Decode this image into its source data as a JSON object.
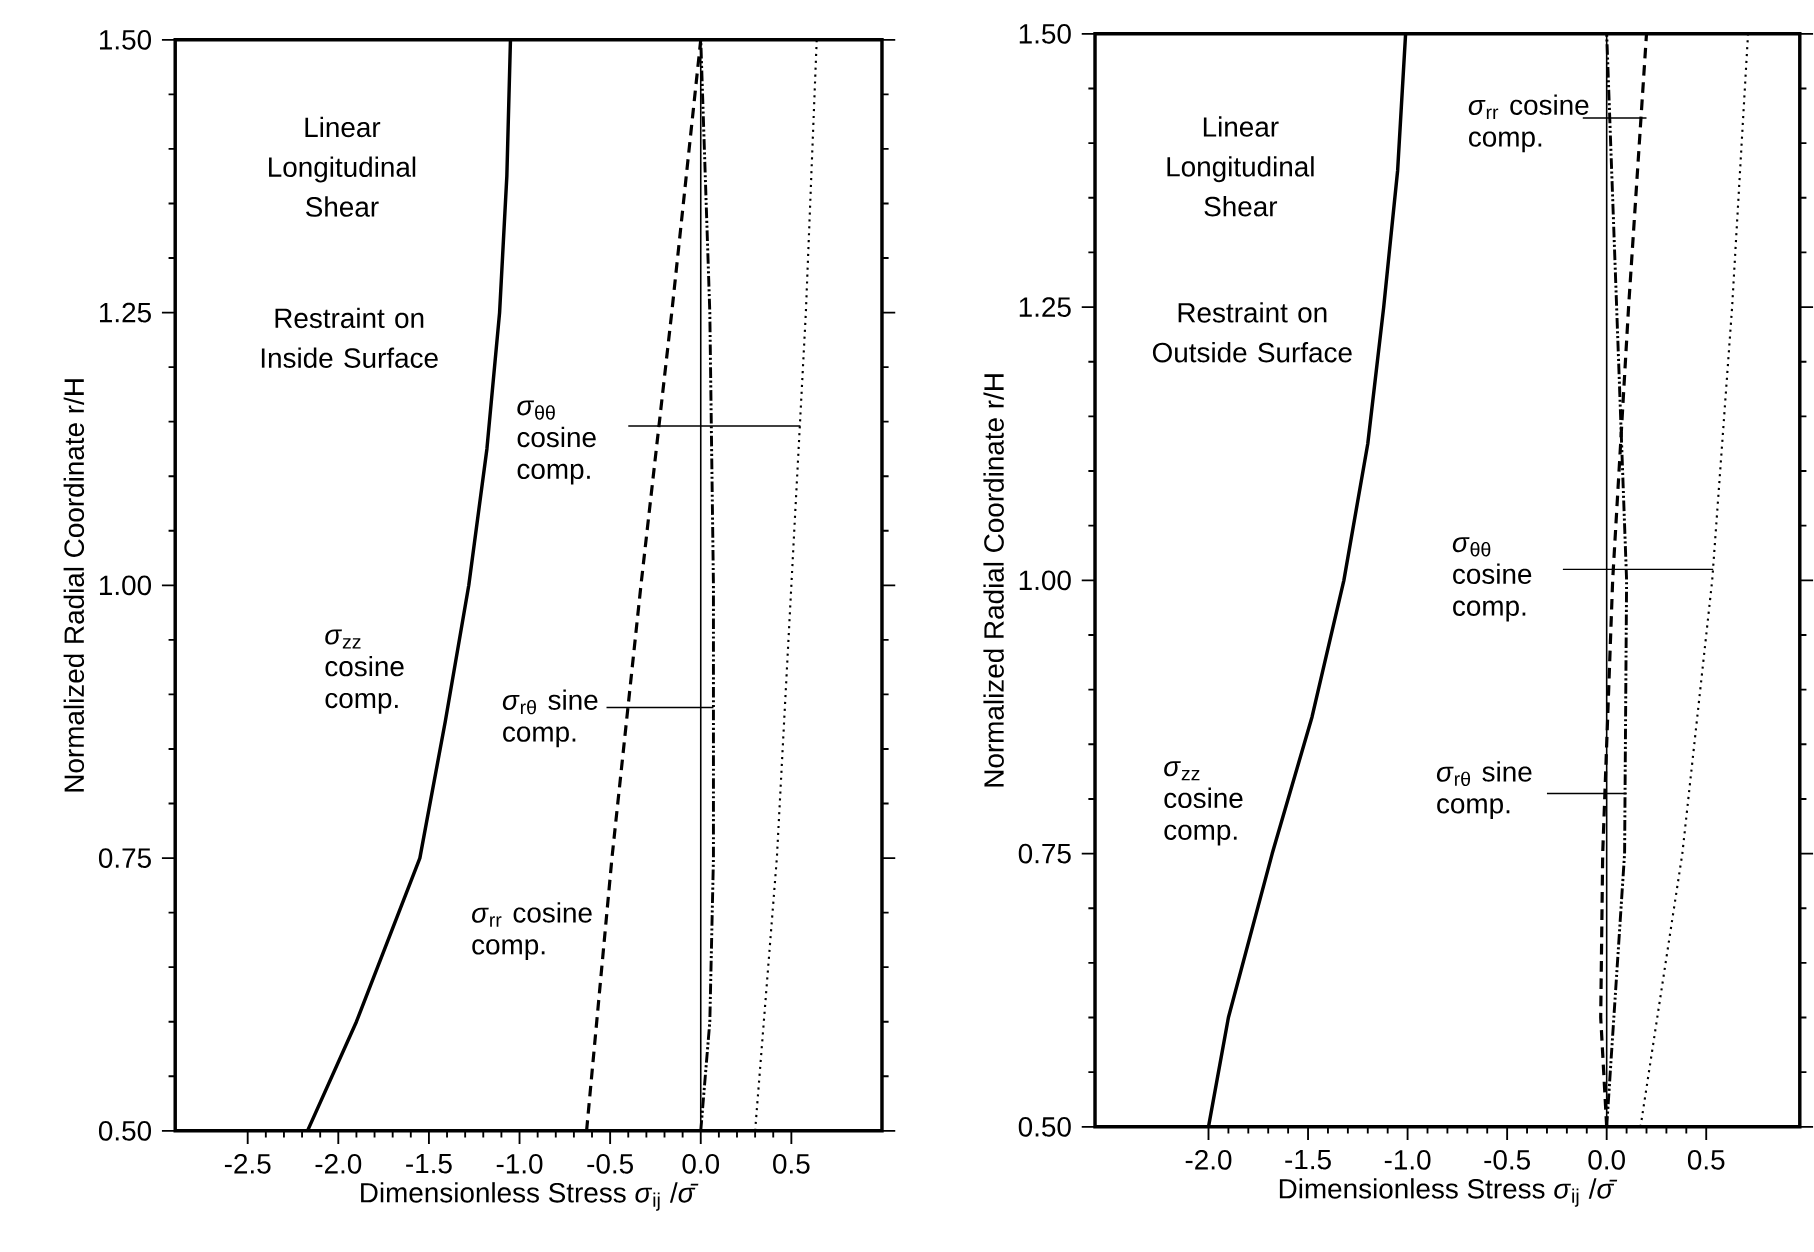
{
  "chart_data": [
    {
      "type": "line",
      "xlabel": "Dimensionless Stress  *σ*$_{ij}$ /*σ̄*",
      "ylabel": "Normalized Radial Coordinate  r/H",
      "xlim": [
        -2.9,
        1.0
      ],
      "ylim": [
        0.5,
        1.5
      ],
      "xticks": [
        {
          "value": -2.5,
          "label": "-2.5"
        },
        {
          "value": -2,
          "label": "-2.0"
        },
        {
          "value": -1.5,
          "label": "-1.5"
        },
        {
          "value": -1,
          "label": "-1.0"
        },
        {
          "value": -0.5,
          "label": "-0.5"
        },
        {
          "value": 0,
          "label": "0.0"
        },
        {
          "value": 0.5,
          "label": "0.5"
        }
      ],
      "yticks": [
        {
          "value": 0.5,
          "label": "0.50"
        },
        {
          "value": 0.75,
          "label": "0.75"
        },
        {
          "value": 1,
          "label": "1.00"
        },
        {
          "value": 1.25,
          "label": "1.25"
        },
        {
          "value": 1.5,
          "label": "1.50"
        }
      ],
      "annotations": [
        "Linear Longitudinal Shear",
        "Restraint on Inside Surface",
        "*σ*$_{zz}$ cosine comp.",
        "*σ*$_{rr}$ cosine comp.",
        {
          "text": "*σ*$_{θθ}$ cosine comp.",
          "x": 0.55,
          "y": 1.146
        },
        "*σ*$_{rθ}$ sine comp."
      ],
      "ref_lines": [
        {
          "axis": "x",
          "value": 0
        }
      ],
      "series": [
        {
          "color": "#000000",
          "line_style": "solid",
          "x": [
            -2.17,
            -1.9,
            -1.55,
            -1.41,
            -1.28,
            -1.18,
            -1.11,
            -1.07,
            -1.05
          ],
          "values": [
            0.5,
            0.6,
            0.75,
            0.875,
            1.0,
            1.125,
            1.25,
            1.375,
            1.5
          ]
        },
        {
          "color": "#000000",
          "line_style": "dashed",
          "x": [
            -0.63,
            -0.49,
            -0.33,
            -0.16,
            0.0
          ],
          "values": [
            0.5,
            0.75,
            1.0,
            1.25,
            1.5
          ]
        },
        {
          "color": "#000000",
          "line_style": "dotted",
          "x": [
            0.3,
            0.42,
            0.5,
            0.58,
            0.64
          ],
          "values": [
            0.5,
            0.75,
            1.0,
            1.25,
            1.5
          ]
        },
        {
          "color": "#000000",
          "line_style": "dashdot",
          "x": [
            0.0,
            0.05,
            0.07,
            0.07,
            0.05,
            0.0
          ],
          "values": [
            0.5,
            0.6,
            0.75,
            1.0,
            1.25,
            1.5
          ]
        }
      ]
    },
    {
      "type": "line",
      "xlabel": "Dimensionless Stress  *σ*$_{ij}$ /*σ̄*",
      "ylabel": "Normalized Radial Coordinate  r/H",
      "xlim": [
        -2.57,
        0.97
      ],
      "ylim": [
        0.5,
        1.5
      ],
      "xticks": [
        {
          "value": -2,
          "label": "-2.0"
        },
        {
          "value": -1.5,
          "label": "-1.5"
        },
        {
          "value": -1,
          "label": "-1.0"
        },
        {
          "value": -0.5,
          "label": "-0.5"
        },
        {
          "value": 0,
          "label": "0.0"
        },
        {
          "value": 0.5,
          "label": "0.5"
        }
      ],
      "yticks": [
        {
          "value": 0.5,
          "label": "0.50"
        },
        {
          "value": 0.75,
          "label": "0.75"
        },
        {
          "value": 1,
          "label": "1.00"
        },
        {
          "value": 1.25,
          "label": "1.25"
        },
        {
          "value": 1.5,
          "label": "1.50"
        }
      ],
      "annotations": [
        "Linear Longitudinal Shear",
        "Restraint on Outside Surface",
        "*σ*$_{zz}$ cosine comp.",
        {
          "text": "*σ*$_{rr}$ cosine comp.",
          "x": 0.2,
          "y": 1.423
        },
        {
          "text": "*σ*$_{θθ}$ cosine comp.",
          "x": 0.535,
          "y": 1.01
        },
        "*σ*$_{rθ}$ sine comp."
      ],
      "ref_lines": [
        {
          "axis": "x",
          "value": 0
        }
      ],
      "series": [
        {
          "color": "#000000",
          "line_style": "solid",
          "x": [
            -2.0,
            -1.9,
            -1.68,
            -1.48,
            -1.32,
            -1.2,
            -1.12,
            -1.05,
            -1.01
          ],
          "values": [
            0.5,
            0.6,
            0.75,
            0.875,
            1.0,
            1.125,
            1.25,
            1.375,
            1.5
          ]
        },
        {
          "color": "#000000",
          "line_style": "dashed",
          "x": [
            0.0,
            -0.03,
            -0.02,
            0.01,
            0.03,
            0.11,
            0.2
          ],
          "values": [
            0.5,
            0.6,
            0.75,
            0.9,
            1.0,
            1.25,
            1.5
          ]
        },
        {
          "color": "#000000",
          "line_style": "dotted",
          "x": [
            0.17,
            0.38,
            0.53,
            0.63,
            0.71
          ],
          "values": [
            0.5,
            0.75,
            1.0,
            1.25,
            1.5
          ]
        },
        {
          "color": "#000000",
          "line_style": "dashdot",
          "x": [
            0.0,
            0.09,
            0.1,
            0.05,
            0.0
          ],
          "values": [
            0.5,
            0.75,
            1.0,
            1.25,
            1.5
          ]
        }
      ]
    }
  ]
}
